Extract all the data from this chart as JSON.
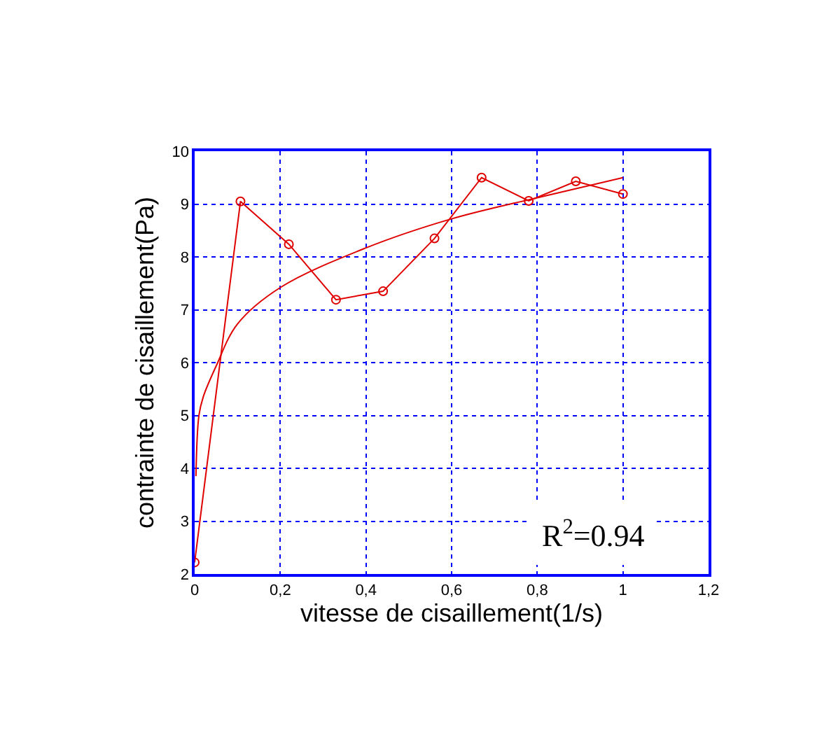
{
  "chart_data": {
    "type": "line",
    "xlabel": "vitesse de cisaillement(1/s)",
    "ylabel": "contrainte de cisaillement(Pa)",
    "xlim": [
      0,
      1.2
    ],
    "ylim": [
      2,
      10
    ],
    "xticks": [
      0,
      {
        "value": 0.2,
        "label": "0,2"
      },
      {
        "value": 0.4,
        "label": "0,4"
      },
      {
        "value": 0.6,
        "label": "0,6"
      },
      {
        "value": 0.8,
        "label": "0,8"
      },
      1,
      {
        "value": 1.2,
        "label": "1,2"
      }
    ],
    "yticks": [
      2,
      3,
      4,
      5,
      6,
      7,
      8,
      9,
      10
    ],
    "grid": true,
    "series": [
      {
        "color": "#e00000",
        "marker": "circle",
        "line_style": "solid",
        "x": [
          0,
          0.107,
          0.22,
          0.33,
          0.44,
          0.56,
          0.67,
          0.78,
          0.89,
          1.0
        ],
        "values": [
          2.22,
          9.05,
          8.24,
          7.19,
          7.35,
          8.35,
          9.5,
          9.06,
          9.43,
          9.19
        ]
      },
      {
        "color": "#e00000",
        "marker": "none",
        "line_style": "solid",
        "x": [
          0.003,
          0.01,
          0.02,
          0.05,
          0.1,
          0.2,
          0.4,
          0.6,
          0.8,
          1.0
        ],
        "values": [
          3.85,
          5.0,
          5.35,
          5.93,
          6.73,
          7.42,
          8.17,
          8.72,
          9.12,
          9.5
        ]
      }
    ],
    "annotations": [
      "R$^{2}$=0.94"
    ]
  }
}
